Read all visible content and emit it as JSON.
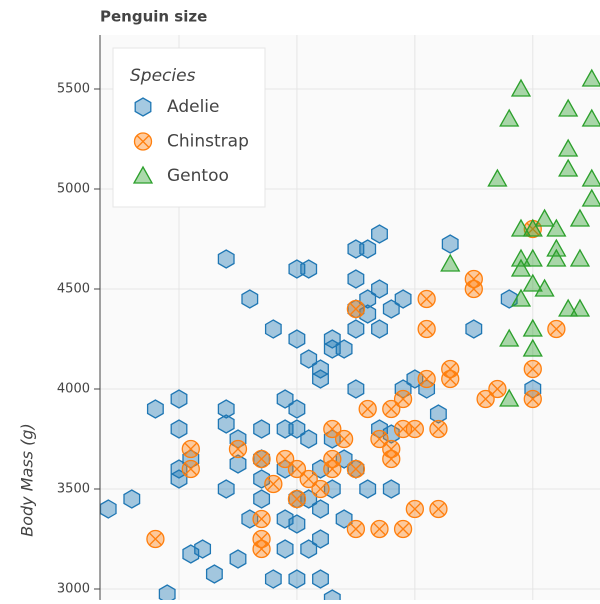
{
  "chart_data": {
    "type": "scatter",
    "title": "Penguin size",
    "y_label": "Body Mass (g)",
    "legend_title": "Species",
    "legend": "top_left",
    "grid": true,
    "xlim": [
      173.3,
      215.7
    ],
    "xticks": [
      180,
      190,
      200,
      210
    ],
    "ylim": [
      2945,
      5770
    ],
    "yticks": [
      3000,
      3500,
      4000,
      4500,
      5000,
      5500
    ],
    "series": [
      {
        "name": "Adelie",
        "color": "#1f77b4",
        "marker": "hex",
        "x": [
          174,
          176,
          178,
          180,
          180,
          180,
          180,
          181,
          181,
          179,
          182,
          183,
          184,
          184,
          184,
          184,
          185,
          185,
          185,
          186,
          186,
          187,
          187,
          187,
          187,
          188,
          188,
          189,
          189,
          189,
          189,
          189,
          190,
          190,
          190,
          190,
          190,
          190,
          190,
          191,
          191,
          191,
          191,
          191,
          192,
          192,
          192,
          192,
          193,
          193,
          193,
          193,
          193,
          194,
          195,
          195,
          195,
          195,
          195,
          195,
          196,
          196,
          196,
          197,
          197,
          197,
          197,
          198,
          198,
          199,
          199,
          200,
          201,
          202,
          203,
          205,
          208,
          210,
          192,
          192,
          194,
          196,
          198,
          194
        ],
        "values": [
          3400,
          3450,
          3900,
          3950,
          3800,
          3600,
          3550,
          3650,
          3175,
          2975,
          3200,
          3075,
          4650,
          3900,
          3825,
          3500,
          3750,
          3625,
          3150,
          4450,
          3350,
          3800,
          3650,
          3550,
          3450,
          4300,
          3050,
          3950,
          3800,
          3600,
          3350,
          3200,
          4600,
          4250,
          3900,
          3800,
          3450,
          3325,
          3050,
          4600,
          4150,
          3750,
          3450,
          3200,
          4100,
          4050,
          3600,
          3400,
          4250,
          4200,
          3750,
          3500,
          2950,
          4200,
          4300,
          4400,
          4550,
          4700,
          4000,
          3600,
          4700,
          4375,
          4450,
          4775,
          4500,
          4300,
          3800,
          4400,
          3775,
          4450,
          4000,
          4050,
          4000,
          3875,
          4725,
          4300,
          4450,
          4000,
          3050,
          3250,
          3350,
          3500,
          3500,
          3650
        ]
      },
      {
        "name": "Chinstrap",
        "color": "#ff7f0e",
        "marker": "circle_x",
        "x": [
          178,
          181,
          181,
          185,
          187,
          187,
          187,
          187,
          188,
          189,
          190,
          190,
          191,
          192,
          193,
          193,
          193,
          194,
          195,
          195,
          195,
          196,
          197,
          197,
          198,
          198,
          198,
          199,
          199,
          200,
          201,
          201,
          201,
          202,
          202,
          203,
          203,
          205,
          205,
          206,
          207,
          210,
          210,
          212,
          210,
          200,
          199
        ],
        "values": [
          3250,
          3700,
          3600,
          3700,
          3650,
          3350,
          3250,
          3200,
          3525,
          3650,
          3600,
          3450,
          3550,
          3500,
          3800,
          3650,
          3600,
          3750,
          4400,
          3600,
          3300,
          3900,
          3750,
          3300,
          3900,
          3700,
          3650,
          3950,
          3800,
          3800,
          4450,
          4300,
          4050,
          3800,
          3400,
          4100,
          4050,
          4550,
          4500,
          3950,
          4000,
          4100,
          3950,
          4300,
          4800,
          3400,
          3300
        ]
      },
      {
        "name": "Gentoo",
        "color": "#2ca02c",
        "marker": "triangle",
        "x": [
          203,
          207,
          208,
          208,
          209,
          209,
          209,
          210,
          210,
          210,
          210,
          210,
          211,
          211,
          212,
          212,
          213,
          213,
          213,
          213,
          214,
          214,
          214,
          215,
          215,
          215,
          215,
          212,
          209,
          208,
          209
        ],
        "values": [
          4625,
          5050,
          4250,
          5350,
          5500,
          4600,
          4450,
          4650,
          4525,
          4300,
          4200,
          4800,
          4500,
          4850,
          4700,
          4800,
          5200,
          5400,
          5100,
          4400,
          4650,
          4400,
          4850,
          5350,
          5550,
          4950,
          5050,
          4650,
          4650,
          3950,
          4800
        ]
      }
    ]
  }
}
